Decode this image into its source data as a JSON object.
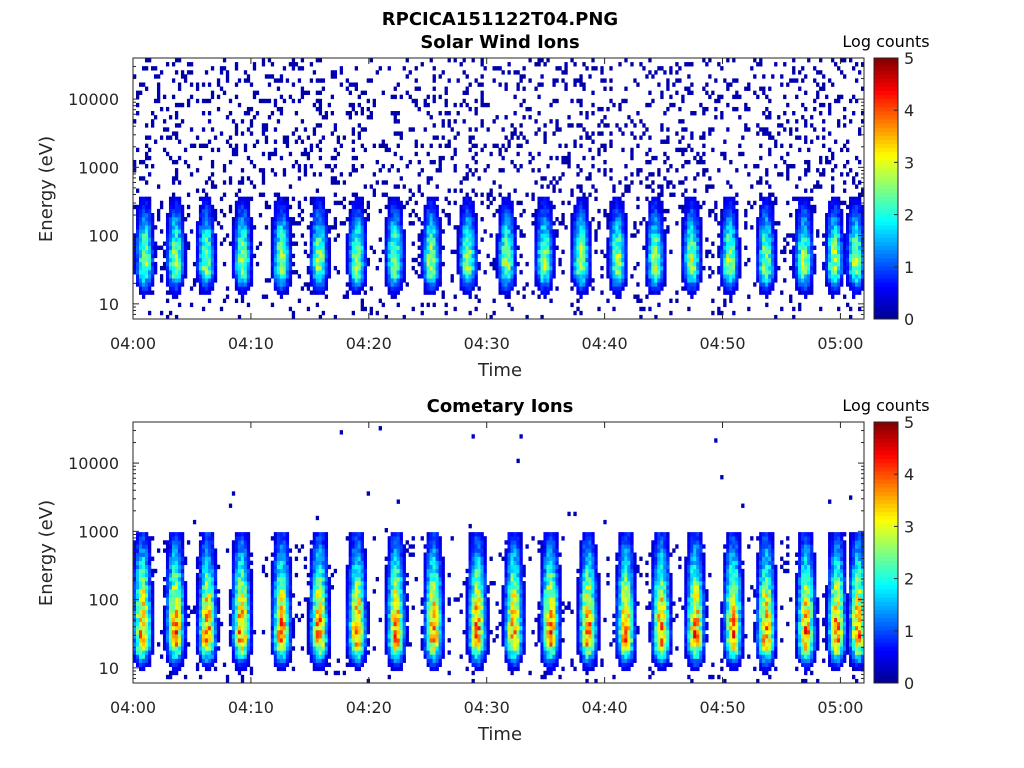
{
  "figure": {
    "filename_title": "RPCICA151122T04.PNG"
  },
  "colors": {
    "jet": [
      "#00008f",
      "#0000ff",
      "#0080ff",
      "#00ffff",
      "#80ff80",
      "#ffff00",
      "#ff8000",
      "#ff0000",
      "#800000"
    ],
    "axis": "#262626"
  },
  "chart_data": [
    {
      "type": "heatmap",
      "title": "Solar Wind Ions",
      "xlabel": "Time",
      "ylabel": "Energy (eV)",
      "colorbar_label": "Log counts",
      "y_scale": "log",
      "ylim": [
        6,
        40000
      ],
      "xlim_minutes_after_0400": [
        0,
        62
      ],
      "x_ticks": [
        "04:00",
        "04:10",
        "04:20",
        "04:30",
        "04:40",
        "04:50",
        "05:00"
      ],
      "y_ticks": [
        "10",
        "100",
        "1000",
        "10000"
      ],
      "colorbar_ticks": [
        "0",
        "1",
        "2",
        "3",
        "4",
        "5"
      ],
      "clim": [
        0,
        5
      ],
      "pulse_times_min": [
        1.0,
        3.6,
        6.2,
        9.3,
        12.6,
        15.8,
        19.0,
        22.2,
        25.3,
        28.4,
        31.7,
        34.9,
        38.0,
        41.1,
        44.3,
        47.4,
        50.6,
        53.7,
        56.9,
        59.5,
        61.3
      ],
      "pulse_peak_log_counts": 2.7,
      "pulse_peak_energy_eV": 38,
      "pulse_top_energy_eV": 250,
      "background_log_counts": 0.3
    },
    {
      "type": "heatmap",
      "title": "Cometary Ions",
      "xlabel": "Time",
      "ylabel": "Energy (eV)",
      "colorbar_label": "Log counts",
      "y_scale": "log",
      "ylim": [
        6,
        40000
      ],
      "xlim_minutes_after_0400": [
        0,
        62
      ],
      "x_ticks": [
        "04:00",
        "04:10",
        "04:20",
        "04:30",
        "04:40",
        "04:50",
        "05:00"
      ],
      "y_ticks": [
        "10",
        "100",
        "1000",
        "10000"
      ],
      "colorbar_ticks": [
        "0",
        "1",
        "2",
        "3",
        "4",
        "5"
      ],
      "clim": [
        0,
        5
      ],
      "pulse_times_min": [
        0.8,
        3.6,
        6.3,
        9.2,
        12.6,
        15.8,
        19.0,
        22.3,
        25.5,
        29.2,
        32.3,
        35.4,
        38.6,
        41.8,
        44.8,
        47.7,
        50.9,
        53.7,
        57.1,
        59.7,
        61.5
      ],
      "pulse_peak_log_counts": 3.7,
      "pulse_peak_energy_eV": 28,
      "pulse_top_energy_eV": 600,
      "background_log_counts": 0.4
    }
  ]
}
